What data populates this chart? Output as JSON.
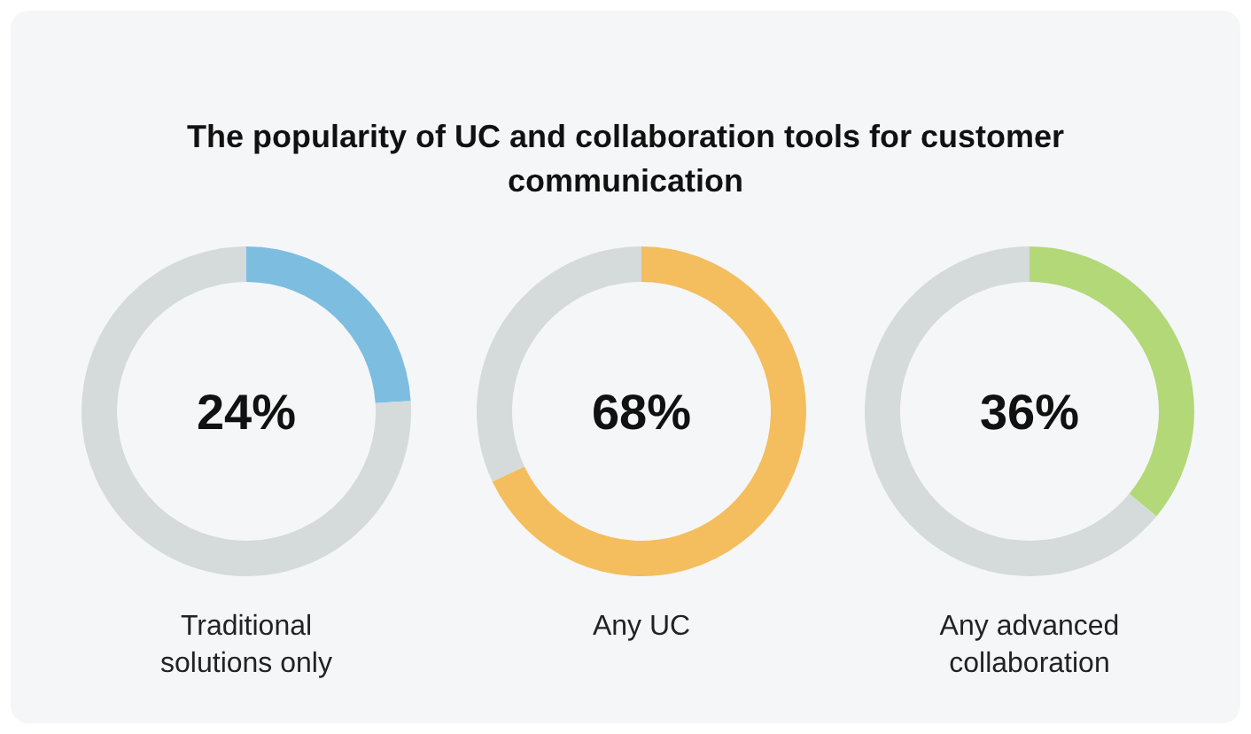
{
  "chart_data": [
    {
      "type": "donut",
      "title": "The popularity of UC and collaboration tools for customer communication",
      "xlabel": "Traditional solutions only",
      "categories": [
        null,
        null
      ],
      "values": [
        24,
        76
      ],
      "colors": [
        "#7dbde0",
        "#d5dadb"
      ],
      "annotations": [
        "24%"
      ]
    },
    {
      "type": "donut",
      "xlabel": "Any UC",
      "categories": [
        null,
        null
      ],
      "values": [
        68,
        32
      ],
      "colors": [
        "#f4bd5d",
        "#d5dadb"
      ],
      "annotations": [
        "68%"
      ]
    },
    {
      "type": "donut",
      "xlabel": "Any advanced collaboration",
      "categories": [
        null,
        null
      ],
      "values": [
        36,
        64
      ],
      "colors": [
        "#b3d878",
        "#d5dadb"
      ],
      "annotations": [
        "36%"
      ]
    }
  ]
}
